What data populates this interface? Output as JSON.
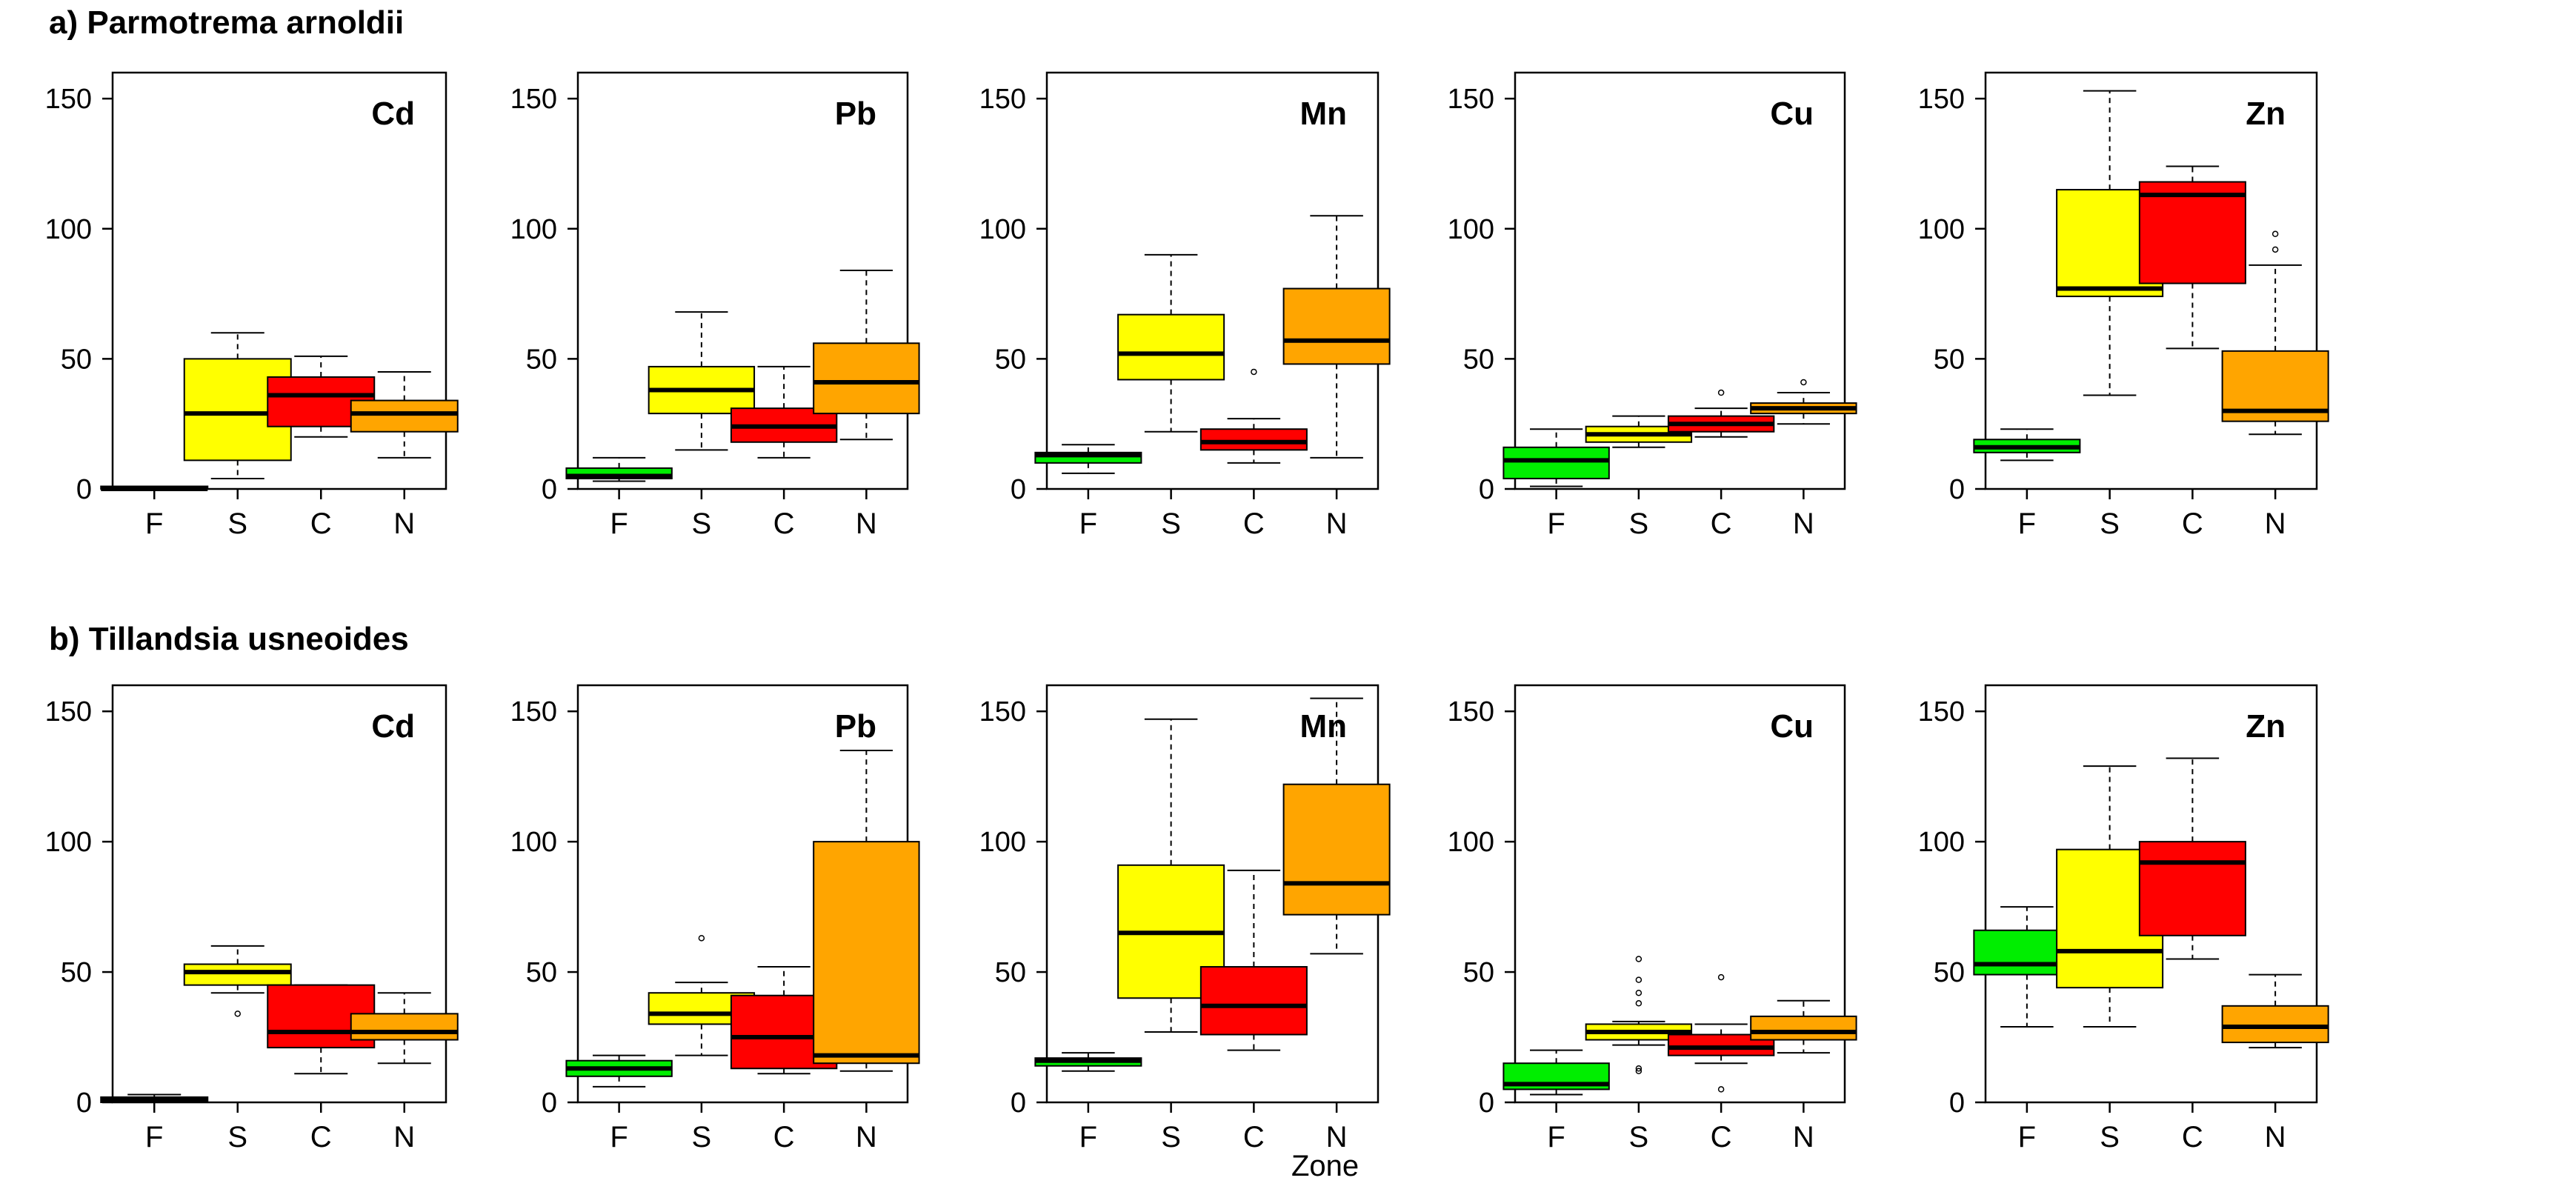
{
  "figure": {
    "xlabel": "Zone"
  },
  "colors": {
    "F": "#00ee00",
    "S": "#ffff00",
    "C": "#ff0000",
    "N": "#ffa500"
  },
  "chart_data": [
    {
      "row": "a",
      "title": "a) Parmotrema arnoldii",
      "type": "boxplot",
      "categories": [
        "F",
        "S",
        "C",
        "N"
      ],
      "ylim": [
        0,
        160
      ],
      "yticks": [
        0,
        50,
        100,
        150
      ],
      "panels": [
        {
          "element": "Cd",
          "boxes": [
            {
              "zone": "F",
              "min": 0,
              "q1": 0,
              "median": 0,
              "q3": 1,
              "max": 1,
              "outliers": []
            },
            {
              "zone": "S",
              "min": 4,
              "q1": 11,
              "median": 29,
              "q3": 50,
              "max": 60,
              "outliers": []
            },
            {
              "zone": "C",
              "min": 20,
              "q1": 24,
              "median": 36,
              "q3": 43,
              "max": 51,
              "outliers": []
            },
            {
              "zone": "N",
              "min": 12,
              "q1": 22,
              "median": 29,
              "q3": 34,
              "max": 45,
              "outliers": []
            }
          ]
        },
        {
          "element": "Pb",
          "boxes": [
            {
              "zone": "F",
              "min": 3,
              "q1": 4,
              "median": 5,
              "q3": 8,
              "max": 12,
              "outliers": []
            },
            {
              "zone": "S",
              "min": 15,
              "q1": 29,
              "median": 38,
              "q3": 47,
              "max": 68,
              "outliers": []
            },
            {
              "zone": "C",
              "min": 12,
              "q1": 18,
              "median": 24,
              "q3": 31,
              "max": 47,
              "outliers": []
            },
            {
              "zone": "N",
              "min": 19,
              "q1": 29,
              "median": 41,
              "q3": 56,
              "max": 84,
              "outliers": []
            }
          ]
        },
        {
          "element": "Mn",
          "boxes": [
            {
              "zone": "F",
              "min": 6,
              "q1": 10,
              "median": 13,
              "q3": 14,
              "max": 17,
              "outliers": []
            },
            {
              "zone": "S",
              "min": 22,
              "q1": 42,
              "median": 52,
              "q3": 67,
              "max": 90,
              "outliers": []
            },
            {
              "zone": "C",
              "min": 10,
              "q1": 15,
              "median": 18,
              "q3": 23,
              "max": 27,
              "outliers": [
                45
              ]
            },
            {
              "zone": "N",
              "min": 12,
              "q1": 48,
              "median": 57,
              "q3": 77,
              "max": 105,
              "outliers": []
            }
          ]
        },
        {
          "element": "Cu",
          "boxes": [
            {
              "zone": "F",
              "min": 1,
              "q1": 4,
              "median": 11,
              "q3": 16,
              "max": 23,
              "outliers": []
            },
            {
              "zone": "S",
              "min": 16,
              "q1": 18,
              "median": 21,
              "q3": 24,
              "max": 28,
              "outliers": []
            },
            {
              "zone": "C",
              "min": 20,
              "q1": 22,
              "median": 25,
              "q3": 28,
              "max": 31,
              "outliers": [
                37
              ]
            },
            {
              "zone": "N",
              "min": 25,
              "q1": 29,
              "median": 31,
              "q3": 33,
              "max": 37,
              "outliers": [
                41
              ]
            }
          ]
        },
        {
          "element": "Zn",
          "boxes": [
            {
              "zone": "F",
              "min": 11,
              "q1": 14,
              "median": 16,
              "q3": 19,
              "max": 23,
              "outliers": []
            },
            {
              "zone": "S",
              "min": 36,
              "q1": 74,
              "median": 77,
              "q3": 115,
              "max": 153,
              "outliers": []
            },
            {
              "zone": "C",
              "min": 54,
              "q1": 79,
              "median": 113,
              "q3": 118,
              "max": 124,
              "outliers": []
            },
            {
              "zone": "N",
              "min": 21,
              "q1": 26,
              "median": 30,
              "q3": 53,
              "max": 86,
              "outliers": [
                92,
                98
              ]
            }
          ]
        }
      ]
    },
    {
      "row": "b",
      "title": "b) Tillandsia usneoides",
      "type": "boxplot",
      "categories": [
        "F",
        "S",
        "C",
        "N"
      ],
      "ylim": [
        0,
        160
      ],
      "yticks": [
        0,
        50,
        100,
        150
      ],
      "panels": [
        {
          "element": "Cd",
          "boxes": [
            {
              "zone": "F",
              "min": 0,
              "q1": 0,
              "median": 1,
              "q3": 2,
              "max": 3,
              "outliers": []
            },
            {
              "zone": "S",
              "min": 42,
              "q1": 45,
              "median": 50,
              "q3": 53,
              "max": 60,
              "outliers": [
                34
              ]
            },
            {
              "zone": "C",
              "min": 11,
              "q1": 21,
              "median": 27,
              "q3": 45,
              "max": 45,
              "outliers": []
            },
            {
              "zone": "N",
              "min": 15,
              "q1": 24,
              "median": 27,
              "q3": 34,
              "max": 42,
              "outliers": []
            }
          ]
        },
        {
          "element": "Pb",
          "boxes": [
            {
              "zone": "F",
              "min": 6,
              "q1": 10,
              "median": 13,
              "q3": 16,
              "max": 18,
              "outliers": []
            },
            {
              "zone": "S",
              "min": 18,
              "q1": 30,
              "median": 34,
              "q3": 42,
              "max": 46,
              "outliers": [
                63
              ]
            },
            {
              "zone": "C",
              "min": 11,
              "q1": 13,
              "median": 25,
              "q3": 41,
              "max": 52,
              "outliers": []
            },
            {
              "zone": "N",
              "min": 12,
              "q1": 15,
              "median": 18,
              "q3": 100,
              "max": 135,
              "outliers": []
            }
          ]
        },
        {
          "element": "Mn",
          "boxes": [
            {
              "zone": "F",
              "min": 12,
              "q1": 14,
              "median": 16,
              "q3": 17,
              "max": 19,
              "outliers": []
            },
            {
              "zone": "S",
              "min": 27,
              "q1": 40,
              "median": 65,
              "q3": 91,
              "max": 147,
              "outliers": []
            },
            {
              "zone": "C",
              "min": 20,
              "q1": 26,
              "median": 37,
              "q3": 52,
              "max": 89,
              "outliers": []
            },
            {
              "zone": "N",
              "min": 57,
              "q1": 72,
              "median": 84,
              "q3": 122,
              "max": 155,
              "outliers": []
            }
          ]
        },
        {
          "element": "Cu",
          "boxes": [
            {
              "zone": "F",
              "min": 3,
              "q1": 5,
              "median": 7,
              "q3": 15,
              "max": 20,
              "outliers": []
            },
            {
              "zone": "S",
              "min": 22,
              "q1": 24,
              "median": 27,
              "q3": 30,
              "max": 31,
              "outliers": [
                12,
                13,
                38,
                42,
                47,
                55
              ]
            },
            {
              "zone": "C",
              "min": 15,
              "q1": 18,
              "median": 21,
              "q3": 26,
              "max": 30,
              "outliers": [
                5,
                48
              ]
            },
            {
              "zone": "N",
              "min": 19,
              "q1": 24,
              "median": 27,
              "q3": 33,
              "max": 39,
              "outliers": []
            }
          ]
        },
        {
          "element": "Zn",
          "boxes": [
            {
              "zone": "F",
              "min": 29,
              "q1": 49,
              "median": 53,
              "q3": 66,
              "max": 75,
              "outliers": []
            },
            {
              "zone": "S",
              "min": 29,
              "q1": 44,
              "median": 58,
              "q3": 97,
              "max": 129,
              "outliers": []
            },
            {
              "zone": "C",
              "min": 55,
              "q1": 64,
              "median": 92,
              "q3": 100,
              "max": 132,
              "outliers": []
            },
            {
              "zone": "N",
              "min": 21,
              "q1": 23,
              "median": 29,
              "q3": 37,
              "max": 49,
              "outliers": []
            }
          ]
        }
      ]
    }
  ]
}
